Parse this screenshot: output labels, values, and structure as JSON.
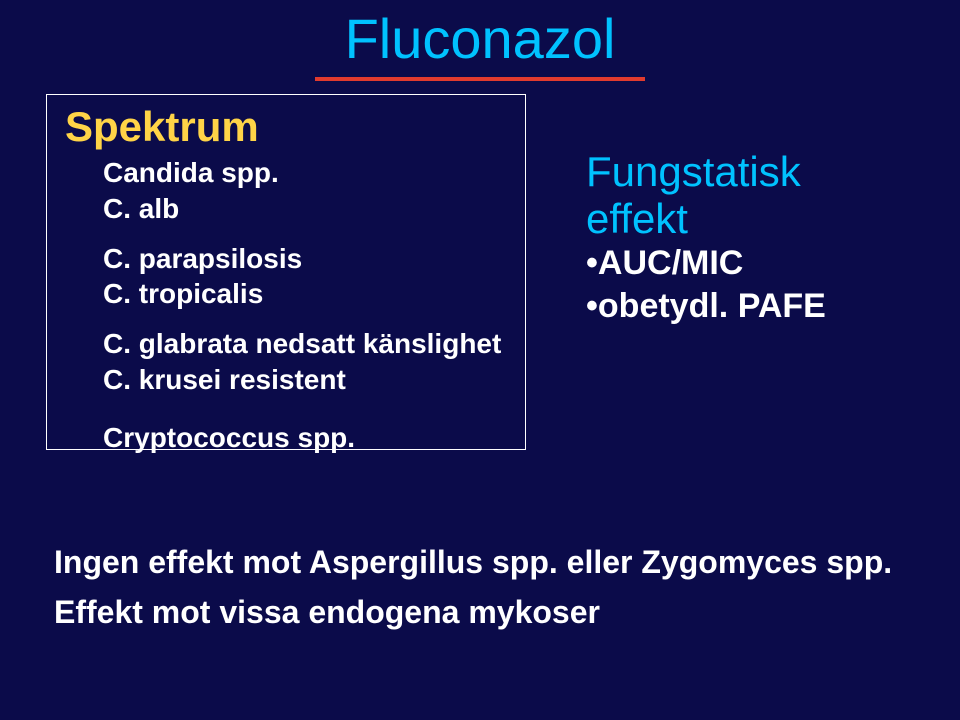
{
  "colors": {
    "background": "#0b0b4a",
    "title": "#00c2ff",
    "underline": "#e23b2e",
    "spektrum": "#ffd447",
    "boxBorder": "#ffffff",
    "text": "#ffffff",
    "rightHead": "#00c2ff"
  },
  "title": "Fluconazol",
  "box": {
    "heading": "Spektrum",
    "lines": {
      "l1": "Candida spp.",
      "l2": "C. alb",
      "l3": "C. parapsilosis",
      "l4": "C. tropicalis",
      "l5": "C. glabrata nedsatt känslighet",
      "l6": "C. krusei resistent",
      "l7": "Cryptococcus spp."
    }
  },
  "right": {
    "h1": "Fungstatisk",
    "h2": "effekt",
    "b1": "•AUC/MIC",
    "b2": "•obetydl. PAFE"
  },
  "bottom": {
    "l1": "Ingen effekt mot Aspergillus spp. eller Zygomyces spp.",
    "l2": "Effekt mot vissa endogena mykoser"
  }
}
